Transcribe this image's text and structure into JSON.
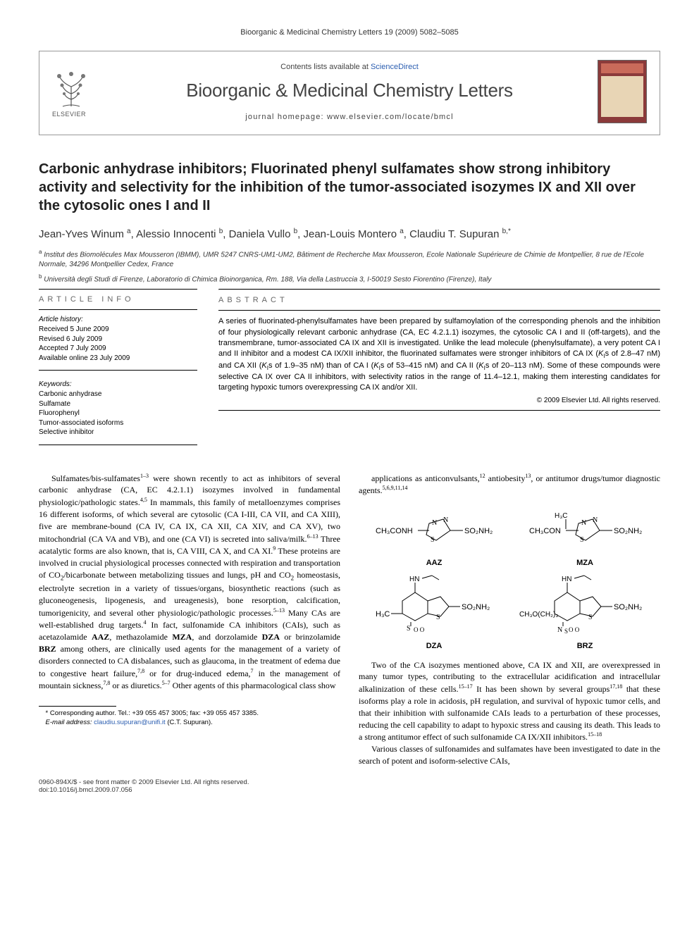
{
  "running_head": "Bioorganic & Medicinal Chemistry Letters 19 (2009) 5082–5085",
  "masthead": {
    "contents_label": "Contents lists available at ",
    "contents_link": "ScienceDirect",
    "journal_name": "Bioorganic & Medicinal Chemistry Letters",
    "homepage_label": "journal homepage: www.elsevier.com/locate/bmcl",
    "publisher": "ELSEVIER"
  },
  "article": {
    "title": "Carbonic anhydrase inhibitors; Fluorinated phenyl sulfamates show strong inhibitory activity and selectivity for the inhibition of the tumor-associated isozymes IX and XII over the cytosolic ones I and II",
    "authors_html": "Jean-Yves Winum <sup>a</sup>, Alessio Innocenti <sup>b</sup>, Daniela Vullo <sup>b</sup>, Jean-Louis Montero <sup>a</sup>, Claudiu T. Supuran <sup>b,*</sup>",
    "affiliations": [
      "Institut des Biomolécules Max Mousseron (IBMM), UMR 5247 CNRS-UM1-UM2, Bâtiment de Recherche Max Mousseron, Ecole Nationale Supérieure de Chimie de Montpellier, 8 rue de l'Ecole Normale, 34296 Montpellier Cedex, France",
      "Università degli Studi di Firenze, Laboratorio di Chimica Bioinorganica, Rm. 188, Via della Lastruccia 3, I-50019 Sesto Fiorentino (Firenze), Italy"
    ]
  },
  "info": {
    "heading": "ARTICLE INFO",
    "history_label": "Article history:",
    "history": [
      "Received 5 June 2009",
      "Revised 6 July 2009",
      "Accepted 7 July 2009",
      "Available online 23 July 2009"
    ],
    "keywords_label": "Keywords:",
    "keywords": [
      "Carbonic anhydrase",
      "Sulfamate",
      "Fluorophenyl",
      "Tumor-associated isoforms",
      "Selective inhibitor"
    ]
  },
  "abstract": {
    "heading": "ABSTRACT",
    "text": "A series of fluorinated-phenylsulfamates have been prepared by sulfamoylation of the corresponding phenols and the inhibition of four physiologically relevant carbonic anhydrase (CA, EC 4.2.1.1) isozymes, the cytosolic CA I and II (off-targets), and the transmembrane, tumor-associated CA IX and XII is investigated. Unlike the lead molecule (phenylsulfamate), a very potent CA I and II inhibitor and a modest CA IX/XII inhibitor, the fluorinated sulfamates were stronger inhibitors of CA IX (KIs of 2.8–47 nM) and CA XII (KIs of 1.9–35 nM) than of CA I (KIs of 53–415 nM) and CA II (KIs of 20–113 nM). Some of these compounds were selective CA IX over CA II inhibitors, with selectivity ratios in the range of 11.4–12.1, making them interesting candidates for targeting hypoxic tumors overexpressing CA IX and/or XII.",
    "copyright": "© 2009 Elsevier Ltd. All rights reserved."
  },
  "body": {
    "para1": "Sulfamates/bis-sulfamates1–3 were shown recently to act as inhibitors of several carbonic anhydrase (CA, EC 4.2.1.1) isozymes involved in fundamental physiologic/pathologic states.4,5 In mammals, this family of metalloenzymes comprises 16 different isoforms, of which several are cytosolic (CA I-III, CA VII, and CA XIII), five are membrane-bound (CA IV, CA IX, CA XII, CA XIV, and CA XV), two mitochondrial (CA VA and VB), and one (CA VI) is secreted into saliva/milk.6–13 Three acatalytic forms are also known, that is, CA VIII, CA X, and CA XI.9 These proteins are involved in crucial physiological processes connected with respiration and transportation of CO2/bicarbonate between metabolizing tissues and lungs, pH and CO2 homeostasis, electrolyte secretion in a variety of tissues/organs, biosynthetic reactions (such as gluconeogenesis, lipogenesis, and ureagenesis), bone resorption, calcification, tumorigenicity, and several other physiologic/pathologic processes.5–13 Many CAs are well-established drug targets.4 In fact, sulfonamide CA inhibitors (CAIs), such as acetazolamide AAZ, methazolamide MZA, and dorzolamide DZA or brinzolamide BRZ among others, are clinically used agents for the management of a variety of disorders connected to CA disbalances, such as glaucoma, in the treatment of edema due to congestive heart failure,7,8 or for drug-induced edema,7 in the management of mountain sickness,7,8 or as diuretics.5–7 Other agents of this pharmacological class show",
    "para2_start": "applications as anticonvulsants,12 antiobesity13, or antitumor drugs/tumor diagnostic agents.5,6,9,11,14",
    "para3": "Two of the CA isozymes mentioned above, CA IX and XII, are overexpressed in many tumor types, contributing to the extracellular acidification and intracellular alkalinization of these cells.15–17 It has been shown by several groups17,18 that these isoforms play a role in acidosis, pH regulation, and survival of hypoxic tumor cells, and that their inhibition with sulfonamide CAIs leads to a perturbation of these processes, reducing the cell capability to adapt to hypoxic stress and causing its death. This leads to a strong antitumor effect of such sulfonamide CA IX/XII inhibitors.15–18",
    "para4": "Various classes of sulfonamides and sulfamates have been investigated to date in the search of potent and isoform-selective CAIs,"
  },
  "chem_labels": {
    "aaz": "AAZ",
    "mza": "MZA",
    "dza": "DZA",
    "brz": "BRZ"
  },
  "footnote": {
    "corresponding": "* Corresponding author. Tel.: +39 055 457 3005; fax: +39 055 457 3385.",
    "email_label": "E-mail address:",
    "email": "claudiu.supuran@unifi.it",
    "email_who": "(C.T. Supuran)."
  },
  "bottom": {
    "line1": "0960-894X/$ - see front matter © 2009 Elsevier Ltd. All rights reserved.",
    "line2": "doi:10.1016/j.bmcl.2009.07.056"
  },
  "colors": {
    "link": "#2a5db0",
    "text": "#000000",
    "muted": "#666666"
  }
}
